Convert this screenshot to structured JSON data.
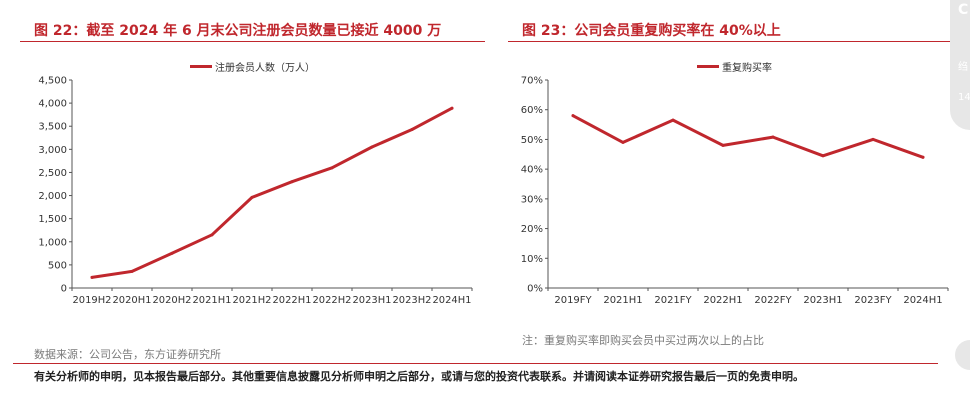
{
  "side_tab": {
    "chars": [
      "C",
      "绉",
      "14"
    ]
  },
  "chart_data": [
    {
      "type": "line",
      "title": "图 22：截至 2024 年 6 月末公司注册会员数量已接近 4000 万",
      "legend": "top-center",
      "series": [
        {
          "name": "注册会员人数（万人）",
          "color": "#c0272d",
          "values": [
            230,
            360,
            750,
            1150,
            1960,
            2300,
            2600,
            3050,
            3430,
            3890
          ]
        }
      ],
      "categories": [
        "2019H2",
        "2020H1",
        "2020H2",
        "2021H1",
        "2021H2",
        "2022H1",
        "2022H2",
        "2023H1",
        "2023H2",
        "2024H1"
      ],
      "ylim": [
        0,
        4500
      ],
      "yticks": [
        "0",
        "500",
        "1,000",
        "1,500",
        "2,000",
        "2,500",
        "3,000",
        "3,500",
        "4,000",
        "4,500"
      ],
      "source": "数据来源：公司公告，东方证券研究所"
    },
    {
      "type": "line",
      "title": "图 23：公司会员重复购买率在 40%以上",
      "legend": "top-center",
      "series": [
        {
          "name": "重复购买率",
          "color": "#c0272d",
          "values": [
            58,
            49,
            56.5,
            48,
            50.8,
            44.5,
            50,
            44
          ]
        }
      ],
      "categories": [
        "2019FY",
        "2021H1",
        "2021FY",
        "2022H1",
        "2022FY",
        "2023H1",
        "2023FY",
        "2024H1"
      ],
      "ylim": [
        0,
        70
      ],
      "yticks": [
        "0%",
        "10%",
        "20%",
        "30%",
        "40%",
        "50%",
        "60%",
        "70%"
      ],
      "note": "注：重复购买率即购买会员中买过两次以上的占比"
    }
  ],
  "footer": {
    "disclaimer": "有关分析师的申明，见本报告最后部分。其他重要信息披露见分析师申明之后部分，或请与您的投资代表联系。并请阅读本证券研究报告最后一页的免责申明。"
  }
}
